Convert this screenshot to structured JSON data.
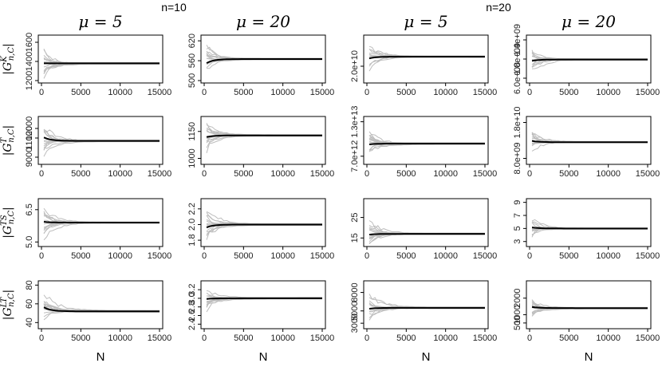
{
  "figure": {
    "group_labels": [
      "n=10",
      "n=20"
    ],
    "column_headers": [
      "μ = 5",
      "μ = 20",
      "μ = 5",
      "μ = 20"
    ],
    "row_labels": [
      {
        "sup": "K",
        "text": "|G^K n,C|"
      },
      {
        "sup": "T",
        "text": "|G^T n,C|"
      },
      {
        "sup": "TS",
        "text": "|G^TS n,C|"
      },
      {
        "sup": "LT",
        "text": "|G^LT n,C|"
      }
    ],
    "x_label": "N"
  },
  "chart_data": [
    {
      "type": "line",
      "row": 0,
      "col": 0,
      "group": "n=10",
      "header": "μ = 5",
      "ylabel": "|G^K n,C|",
      "xlabel": "",
      "xlim": [
        0,
        15000
      ],
      "ylim": [
        1200,
        1650
      ],
      "yticks": [
        1200,
        1400,
        1600
      ],
      "ytick_labels": [
        "1200",
        "1400",
        "1600"
      ],
      "converged_value": 1380,
      "start_value": 1380,
      "spread": 0.85
    },
    {
      "type": "line",
      "row": 0,
      "col": 1,
      "group": "n=10",
      "header": "μ = 20",
      "ylabel": "",
      "xlabel": "",
      "xlim": [
        0,
        15000
      ],
      "ylim": [
        500,
        630
      ],
      "yticks": [
        500,
        560,
        620
      ],
      "ytick_labels": [
        "500",
        "560",
        "620"
      ],
      "converged_value": 565,
      "start_value": 548,
      "spread": 0.9
    },
    {
      "type": "line",
      "row": 0,
      "col": 2,
      "group": "n=20",
      "header": "μ = 5",
      "ylabel": "",
      "xlabel": "",
      "xlim": [
        0,
        15000
      ],
      "ylim": [
        17000000000.0,
        26000000000.0
      ],
      "yticks": [
        20000000000.0
      ],
      "ytick_labels": [
        "2.0e+10"
      ],
      "converged_value": 22000000000.0,
      "start_value": 21500000000.0,
      "spread": 0.7
    },
    {
      "type": "line",
      "row": 0,
      "col": 3,
      "group": "n=20",
      "header": "μ = 20",
      "ylabel": "",
      "xlabel": "",
      "xlim": [
        0,
        15000
      ],
      "ylim": [
        550000000.0,
        1450000000.0
      ],
      "yticks": [
        600000000.0,
        1000000000.0,
        1400000000.0
      ],
      "ytick_labels": [
        "6.0e+08",
        "1.0e+09",
        "1.4e+09"
      ],
      "converged_value": 990000000.0,
      "start_value": 950000000.0,
      "spread": 0.7
    },
    {
      "type": "line",
      "row": 1,
      "col": 0,
      "group": "n=10",
      "header": "μ = 5",
      "ylabel": "|G^T n,C|",
      "xlabel": "",
      "xlim": [
        0,
        15000
      ],
      "ylim": [
        8500,
        13000
      ],
      "yticks": [
        9000,
        11000,
        12000
      ],
      "ytick_labels": [
        "9000",
        "11000",
        "12000"
      ],
      "converged_value": 10700,
      "start_value": 11200,
      "spread": 0.9
    },
    {
      "type": "line",
      "row": 1,
      "col": 1,
      "group": "n=10",
      "header": "μ = 20",
      "ylabel": "",
      "xlabel": "",
      "xlim": [
        0,
        15000
      ],
      "ylim": [
        980,
        1220
      ],
      "yticks": [
        1000,
        1150
      ],
      "ytick_labels": [
        "1000",
        "1150"
      ],
      "converged_value": 1128,
      "start_value": 1115,
      "spread": 0.85
    },
    {
      "type": "line",
      "row": 1,
      "col": 2,
      "group": "n=20",
      "header": "μ = 5",
      "ylabel": "",
      "xlabel": "",
      "xlim": [
        0,
        15000
      ],
      "ylim": [
        6000000000000.0,
        13500000000000.0
      ],
      "yticks": [
        7000000000000.0,
        13000000000000.0
      ],
      "ytick_labels": [
        "7.0e+12",
        "1.3e+13"
      ],
      "converged_value": 9200000000000.0,
      "start_value": 9000000000000.0,
      "spread": 0.7
    },
    {
      "type": "line",
      "row": 1,
      "col": 3,
      "group": "n=20",
      "header": "μ = 20",
      "ylabel": "",
      "xlabel": "",
      "xlim": [
        0,
        15000
      ],
      "ylim": [
        7000000000.0,
        19000000000.0
      ],
      "yticks": [
        8000000000.0,
        18000000000.0
      ],
      "ytick_labels": [
        "8.0e+09",
        "1.8e+10"
      ],
      "converged_value": 12500000000.0,
      "start_value": 13000000000.0,
      "spread": 0.75
    },
    {
      "type": "line",
      "row": 2,
      "col": 0,
      "group": "n=10",
      "header": "μ = 5",
      "ylabel": "|G^TS n,C|",
      "xlabel": "",
      "xlim": [
        0,
        15000
      ],
      "ylim": [
        4.9,
        6.9
      ],
      "yticks": [
        5.0,
        6.5
      ],
      "ytick_labels": [
        "5.0",
        "6.5"
      ],
      "converged_value": 5.9,
      "start_value": 5.95,
      "spread": 0.8
    },
    {
      "type": "line",
      "row": 2,
      "col": 1,
      "group": "n=10",
      "header": "μ = 20",
      "ylabel": "",
      "xlabel": "",
      "xlim": [
        0,
        15000
      ],
      "ylim": [
        1.75,
        2.3
      ],
      "yticks": [
        1.8,
        2.0,
        2.2
      ],
      "ytick_labels": [
        "1.8",
        "2.0",
        "2.2"
      ],
      "converged_value": 2.0,
      "start_value": 1.95,
      "spread": 0.85
    },
    {
      "type": "line",
      "row": 2,
      "col": 2,
      "group": "n=20",
      "header": "μ = 5",
      "ylabel": "",
      "xlabel": "",
      "xlim": [
        0,
        15000
      ],
      "ylim": [
        12,
        33
      ],
      "yticks": [
        15,
        25
      ],
      "ytick_labels": [
        "15",
        "25"
      ],
      "converged_value": 17,
      "start_value": 16.5,
      "spread": 0.75
    },
    {
      "type": "line",
      "row": 2,
      "col": 3,
      "group": "n=20",
      "header": "μ = 20",
      "ylabel": "",
      "xlabel": "",
      "xlim": [
        0,
        15000
      ],
      "ylim": [
        2.6,
        9.2
      ],
      "yticks": [
        3,
        5,
        7,
        9
      ],
      "ytick_labels": [
        "3",
        "5",
        "7",
        "9"
      ],
      "converged_value": 5.0,
      "start_value": 5.2,
      "spread": 0.7
    },
    {
      "type": "line",
      "row": 3,
      "col": 0,
      "group": "n=10",
      "header": "μ = 5",
      "ylabel": "|G^LT n,C|",
      "xlabel": "N",
      "xlim": [
        0,
        15000
      ],
      "ylim": [
        36,
        82
      ],
      "yticks": [
        40,
        60,
        80
      ],
      "ytick_labels": [
        "40",
        "60",
        "80"
      ],
      "converged_value": 52,
      "start_value": 58,
      "spread": 0.85
    },
    {
      "type": "line",
      "row": 3,
      "col": 1,
      "group": "n=10",
      "header": "μ = 20",
      "ylabel": "",
      "xlabel": "N",
      "xlim": [
        0,
        15000
      ],
      "ylim": [
        2.35,
        3.35
      ],
      "yticks": [
        2.4,
        2.6,
        2.8,
        3.0,
        3.2
      ],
      "ytick_labels": [
        "2.4",
        "2.6",
        "2.8",
        "3.0",
        "3.2"
      ],
      "converged_value": 3.0,
      "start_value": 2.98,
      "spread": 0.85
    },
    {
      "type": "line",
      "row": 3,
      "col": 2,
      "group": "n=20",
      "header": "μ = 5",
      "ylabel": "",
      "xlabel": "N",
      "xlim": [
        0,
        15000
      ],
      "ylim": [
        2500,
        9500
      ],
      "yticks": [
        3000,
        5000,
        8000
      ],
      "ytick_labels": [
        "3000",
        "5000",
        "8000"
      ],
      "converged_value": 5500,
      "start_value": 5300,
      "spread": 0.75
    },
    {
      "type": "line",
      "row": 3,
      "col": 3,
      "group": "n=20",
      "header": "μ = 20",
      "ylabel": "",
      "xlabel": "N",
      "xlim": [
        0,
        15000
      ],
      "ylim": [
        300,
        2900
      ],
      "yticks": [
        500,
        1000,
        2000
      ],
      "ytick_labels": [
        "500",
        "1000",
        "2000"
      ],
      "converged_value": 1400,
      "start_value": 1500,
      "spread": 0.8
    }
  ],
  "x_ticks": [
    0,
    5000,
    10000,
    15000
  ],
  "x_tick_labels": [
    "0",
    "5000",
    "10000",
    "15000"
  ],
  "colors": {
    "mean_line": "#000000",
    "replicate_lines": "#bdbdbd",
    "axis": "#000000"
  }
}
